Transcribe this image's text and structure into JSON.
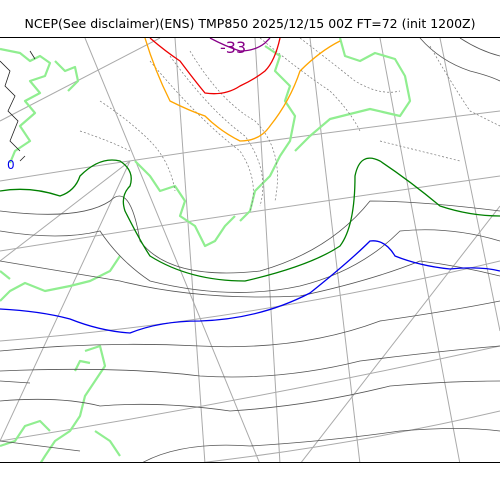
{
  "header": {
    "title": "NCEP(See disclaimer)(ENS) TMP850 2025/12/15 00Z FT=72 (init 1200Z)"
  },
  "map": {
    "colors": {
      "coast": "#90ee90",
      "grid": "#aaaaaa",
      "isotherm_thin": "#555555",
      "isotherm_dotted": "#777777",
      "isotherm_green": "#008000",
      "isotherm_blue": "#0000ee",
      "isotherm_orange": "#ffa500",
      "isotherm_red": "#ee0000",
      "isotherm_purple": "#880088"
    },
    "labels": {
      "contour_minus_33": "-33",
      "contour_zero": "0"
    }
  }
}
